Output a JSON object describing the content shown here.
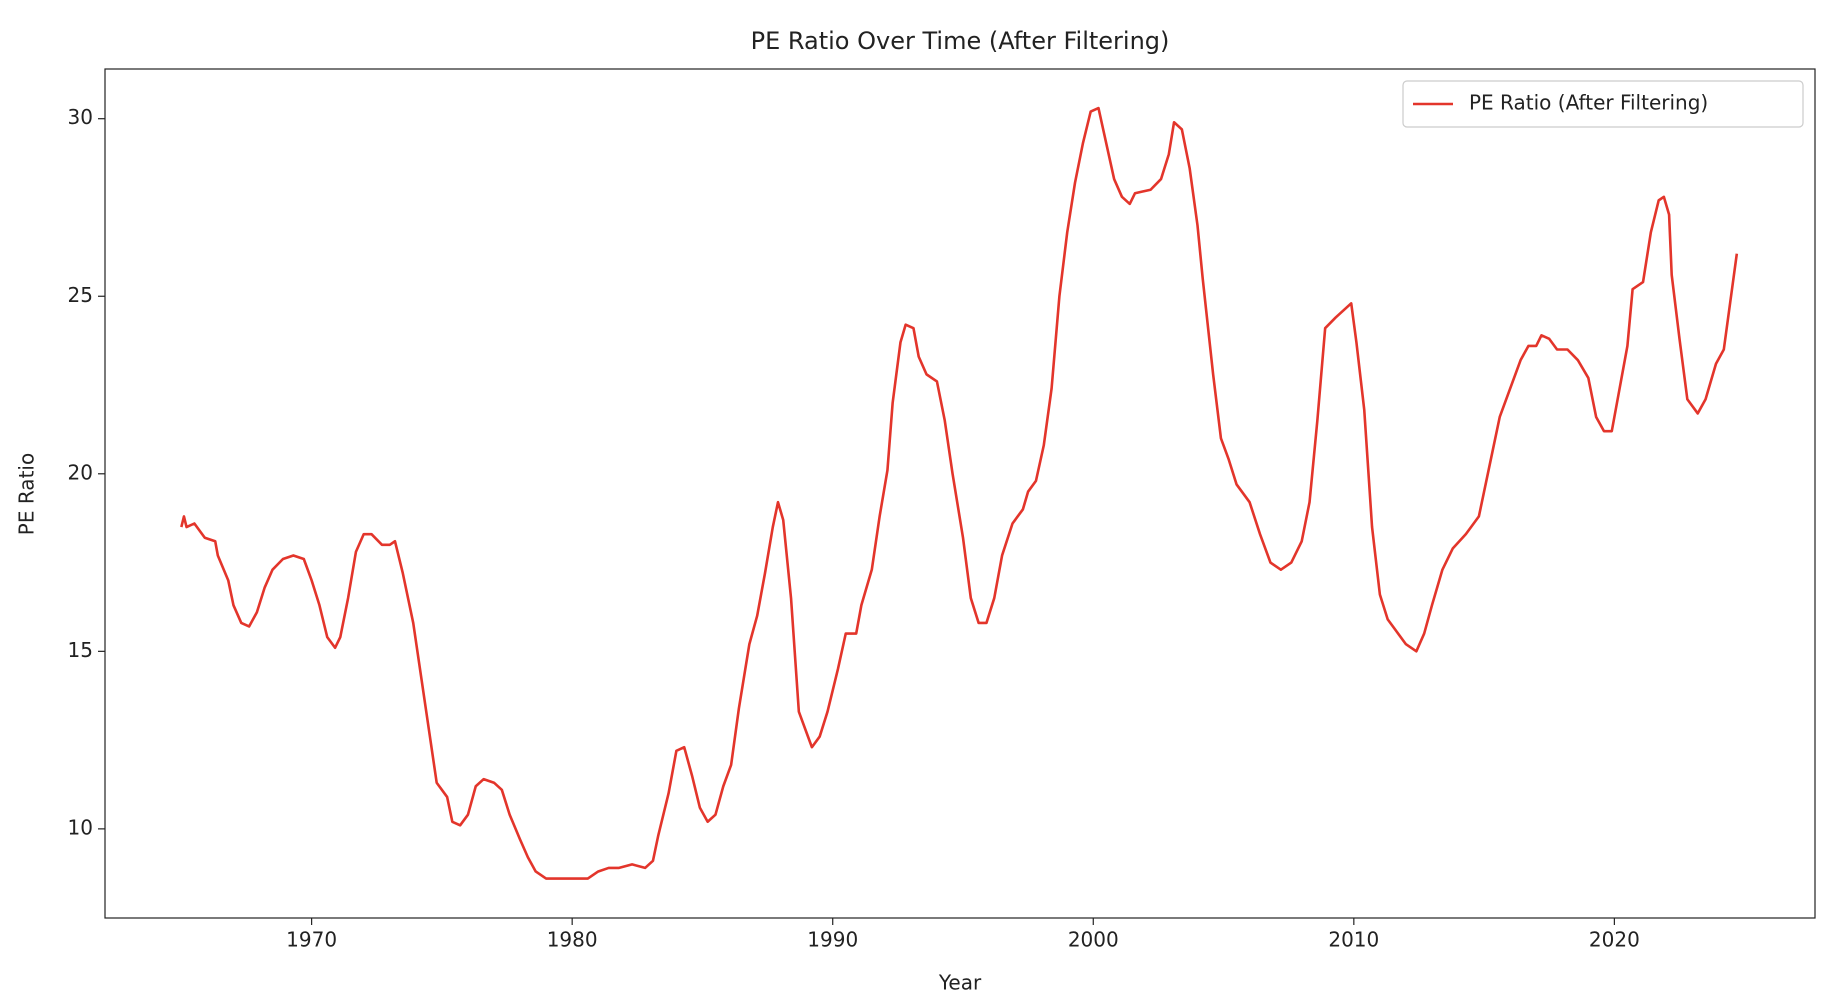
{
  "chart_data": {
    "type": "line",
    "title": "PE Ratio Over Time (After Filtering)",
    "x_label": "Year",
    "y_label": "PE Ratio",
    "xlim": [
      1962.07,
      2027.7
    ],
    "ylim": [
      7.49,
      31.4
    ],
    "xticks": [
      1970,
      1980,
      1990,
      2000,
      2010,
      2020
    ],
    "yticks": [
      10,
      15,
      20,
      25,
      30
    ],
    "legend": "upper right",
    "grid": false,
    "series": [
      {
        "name": "PE Ratio (After Filtering)",
        "color": "#e3352b",
        "x": [
          1965.0,
          1965.1,
          1965.2,
          1965.5,
          1965.9,
          1966.3,
          1966.4,
          1966.8,
          1967.0,
          1967.3,
          1967.6,
          1967.9,
          1968.2,
          1968.5,
          1968.9,
          1969.3,
          1969.7,
          1970.0,
          1970.3,
          1970.6,
          1970.9,
          1971.1,
          1971.4,
          1971.7,
          1972.0,
          1972.3,
          1972.7,
          1973.0,
          1973.2,
          1973.5,
          1973.9,
          1974.2,
          1974.5,
          1974.8,
          1975.2,
          1975.4,
          1975.7,
          1976.0,
          1976.3,
          1976.6,
          1977.0,
          1977.3,
          1977.6,
          1978.0,
          1978.3,
          1978.6,
          1979.0,
          1980.0,
          1980.6,
          1981.0,
          1981.4,
          1981.8,
          1982.3,
          1982.8,
          1983.1,
          1983.3,
          1983.7,
          1984.0,
          1984.3,
          1984.6,
          1984.9,
          1985.2,
          1985.5,
          1985.8,
          1986.1,
          1986.4,
          1986.8,
          1987.1,
          1987.4,
          1987.7,
          1987.9,
          1988.1,
          1988.4,
          1988.7,
          1989.0,
          1989.2,
          1989.5,
          1989.8,
          1990.2,
          1990.5,
          1990.9,
          1991.1,
          1991.5,
          1991.8,
          1992.1,
          1992.3,
          1992.6,
          1992.8,
          1993.1,
          1993.3,
          1993.6,
          1994.0,
          1994.3,
          1994.6,
          1995.0,
          1995.3,
          1995.6,
          1995.9,
          1996.2,
          1996.5,
          1996.9,
          1997.3,
          1997.5,
          1997.8,
          1998.1,
          1998.4,
          1998.7,
          1999.0,
          1999.3,
          1999.6,
          1999.9,
          2000.2,
          2000.5,
          2000.8,
          2001.1,
          2001.4,
          2001.6,
          2002.2,
          2002.6,
          2002.9,
          2003.1,
          2003.4,
          2003.7,
          2004.0,
          2004.2,
          2004.6,
          2004.9,
          2005.2,
          2005.5,
          2006.0,
          2006.4,
          2006.8,
          2007.2,
          2007.6,
          2008.0,
          2008.3,
          2008.6,
          2008.9,
          2009.3,
          2009.9,
          2010.1,
          2010.4,
          2010.7,
          2011.0,
          2011.3,
          2011.6,
          2012.0,
          2012.4,
          2012.7,
          2013.0,
          2013.4,
          2013.8,
          2014.3,
          2014.8,
          2015.2,
          2015.6,
          2016.0,
          2016.4,
          2016.7,
          2017.0,
          2017.2,
          2017.5,
          2017.8,
          2018.2,
          2018.6,
          2019.0,
          2019.3,
          2019.6,
          2019.9,
          2020.2,
          2020.5,
          2020.7,
          2021.1,
          2021.4,
          2021.7,
          2021.9,
          2022.1,
          2022.2,
          2022.5,
          2022.8,
          2023.2,
          2023.5,
          2023.9,
          2024.2,
          2024.7
        ],
        "values": [
          18.5,
          18.8,
          18.5,
          18.6,
          18.2,
          18.1,
          17.7,
          17.0,
          16.3,
          15.8,
          15.7,
          16.1,
          16.8,
          17.3,
          17.6,
          17.7,
          17.6,
          17.0,
          16.3,
          15.4,
          15.1,
          15.4,
          16.5,
          17.8,
          18.3,
          18.3,
          18.0,
          18.0,
          18.1,
          17.2,
          15.8,
          14.3,
          12.8,
          11.3,
          10.9,
          10.2,
          10.1,
          10.4,
          11.2,
          11.4,
          11.3,
          11.1,
          10.4,
          9.7,
          9.2,
          8.8,
          8.6,
          8.6,
          8.6,
          8.8,
          8.9,
          8.9,
          9.0,
          8.9,
          9.1,
          9.8,
          11.0,
          12.2,
          12.3,
          11.5,
          10.6,
          10.2,
          10.4,
          11.2,
          11.8,
          13.4,
          15.2,
          16.0,
          17.2,
          18.5,
          19.2,
          18.7,
          16.5,
          13.3,
          12.7,
          12.3,
          12.6,
          13.3,
          14.5,
          15.5,
          15.5,
          16.3,
          17.3,
          18.8,
          20.1,
          22.0,
          23.7,
          24.2,
          24.1,
          23.3,
          22.8,
          22.6,
          21.5,
          20.0,
          18.2,
          16.5,
          15.8,
          15.8,
          16.5,
          17.7,
          18.6,
          19.0,
          19.5,
          19.8,
          20.8,
          22.4,
          25.0,
          26.8,
          28.2,
          29.3,
          30.2,
          30.3,
          29.3,
          28.3,
          27.8,
          27.6,
          27.9,
          28.0,
          28.3,
          29.0,
          29.9,
          29.7,
          28.6,
          27.0,
          25.5,
          22.8,
          21.0,
          20.4,
          19.7,
          19.2,
          18.3,
          17.5,
          17.3,
          17.5,
          18.1,
          19.2,
          21.5,
          24.1,
          24.4,
          24.8,
          23.7,
          21.8,
          18.5,
          16.6,
          15.9,
          15.6,
          15.2,
          15.0,
          15.5,
          16.3,
          17.3,
          17.9,
          18.3,
          18.8,
          20.2,
          21.6,
          22.4,
          23.2,
          23.6,
          23.6,
          23.9,
          23.8,
          23.5,
          23.5,
          23.2,
          22.7,
          21.6,
          21.2,
          21.2,
          22.4,
          23.6,
          25.2,
          25.4,
          26.8,
          27.7,
          27.8,
          27.3,
          25.6,
          23.8,
          22.1,
          21.7,
          22.1,
          23.1,
          23.5,
          26.2
        ]
      }
    ]
  }
}
